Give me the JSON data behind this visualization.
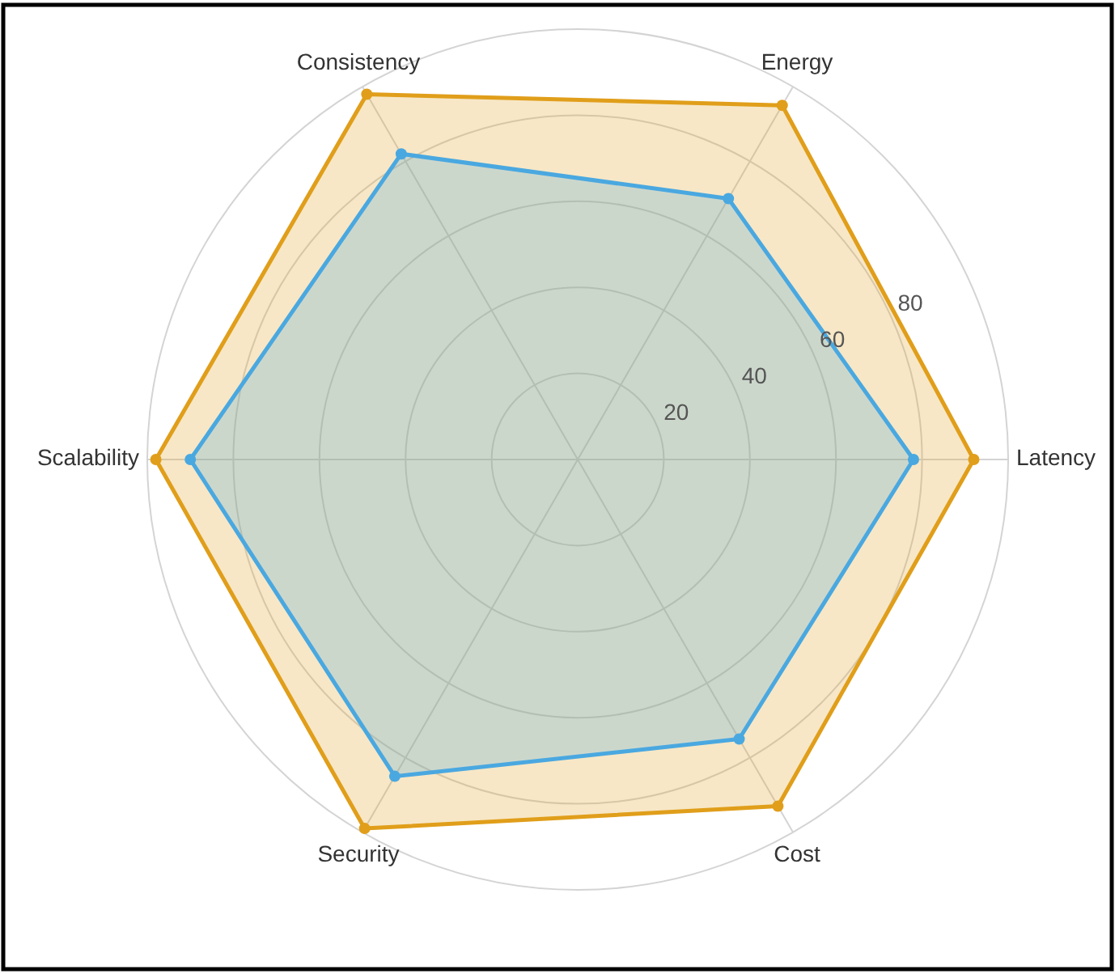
{
  "chart_data": {
    "type": "radar",
    "categories": [
      "Latency",
      "Cost",
      "Security",
      "Scalability",
      "Consistency",
      "Energy"
    ],
    "series": [
      {
        "color": "#e09e1a",
        "values": [
          92,
          93,
          99,
          98,
          98,
          95
        ]
      },
      {
        "color": "#4aa8e0",
        "values": [
          78,
          75,
          85,
          90,
          82,
          70
        ]
      }
    ],
    "ylim": [
      0,
      100
    ],
    "yticks": [
      20,
      40,
      60,
      80
    ],
    "grid": true,
    "marker": "circle"
  }
}
